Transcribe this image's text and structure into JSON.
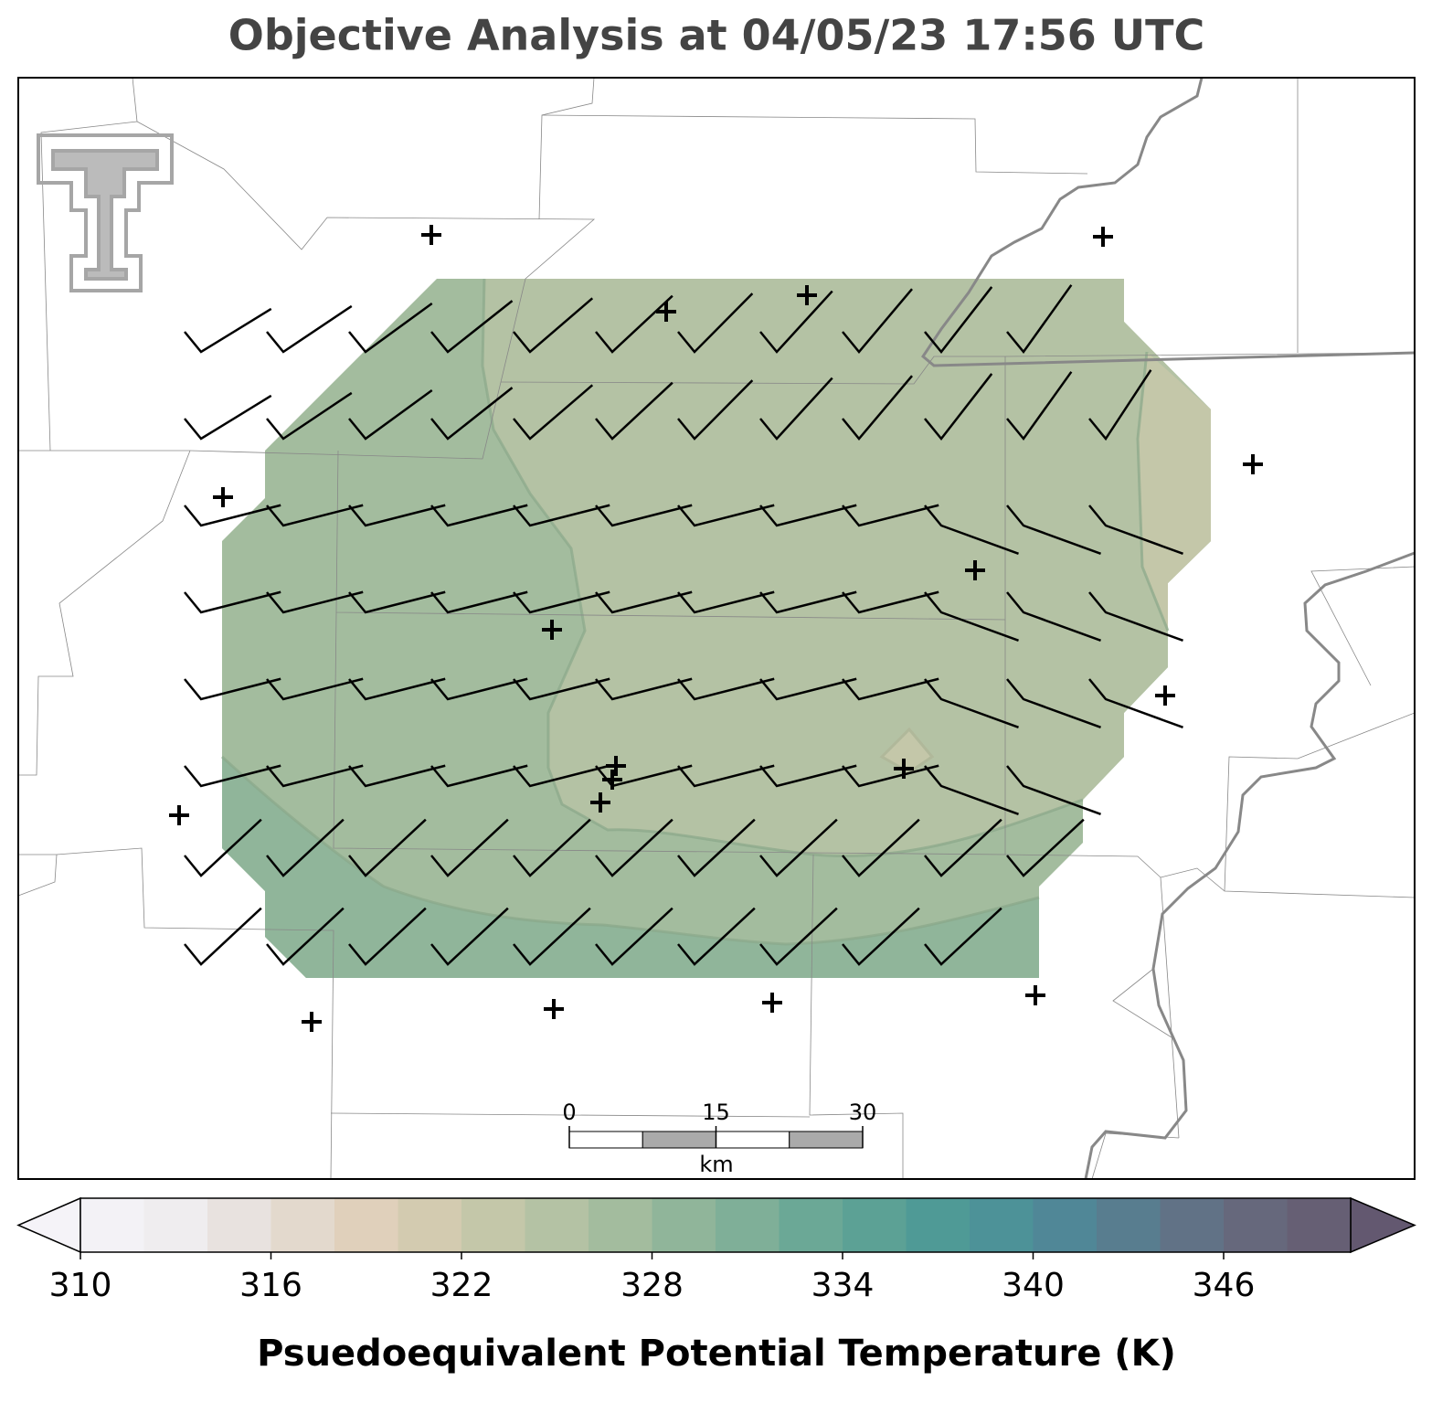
{
  "title": "Objective Analysis at 04/05/23 17:56 UTC",
  "scale_bar": {
    "ticks": [
      0,
      15,
      30
    ],
    "unit": "km"
  },
  "colorbar": {
    "label": "Psuedoequivalent Potential Temperature (K)",
    "levels": [
      310,
      312,
      314,
      316,
      318,
      320,
      322,
      324,
      326,
      328,
      330,
      332,
      334,
      336,
      338,
      340,
      342,
      344,
      346,
      348,
      350
    ],
    "colors": [
      "#f3f2f6",
      "#efedef",
      "#e8e2df",
      "#e3d9cd",
      "#e0d0bb",
      "#d3cbb0",
      "#c4c7a9",
      "#b4c2a4",
      "#a3bc9e",
      "#90b59a",
      "#7faf98",
      "#6ba896",
      "#5ca195",
      "#4f9a96",
      "#4d9298",
      "#508797",
      "#587d8f",
      "#617286",
      "#66687c",
      "#665f74"
    ],
    "under_color": "#f5f3f8",
    "over_color": "#635870",
    "ticks": [
      310,
      316,
      322,
      328,
      334,
      340,
      346
    ]
  }
}
